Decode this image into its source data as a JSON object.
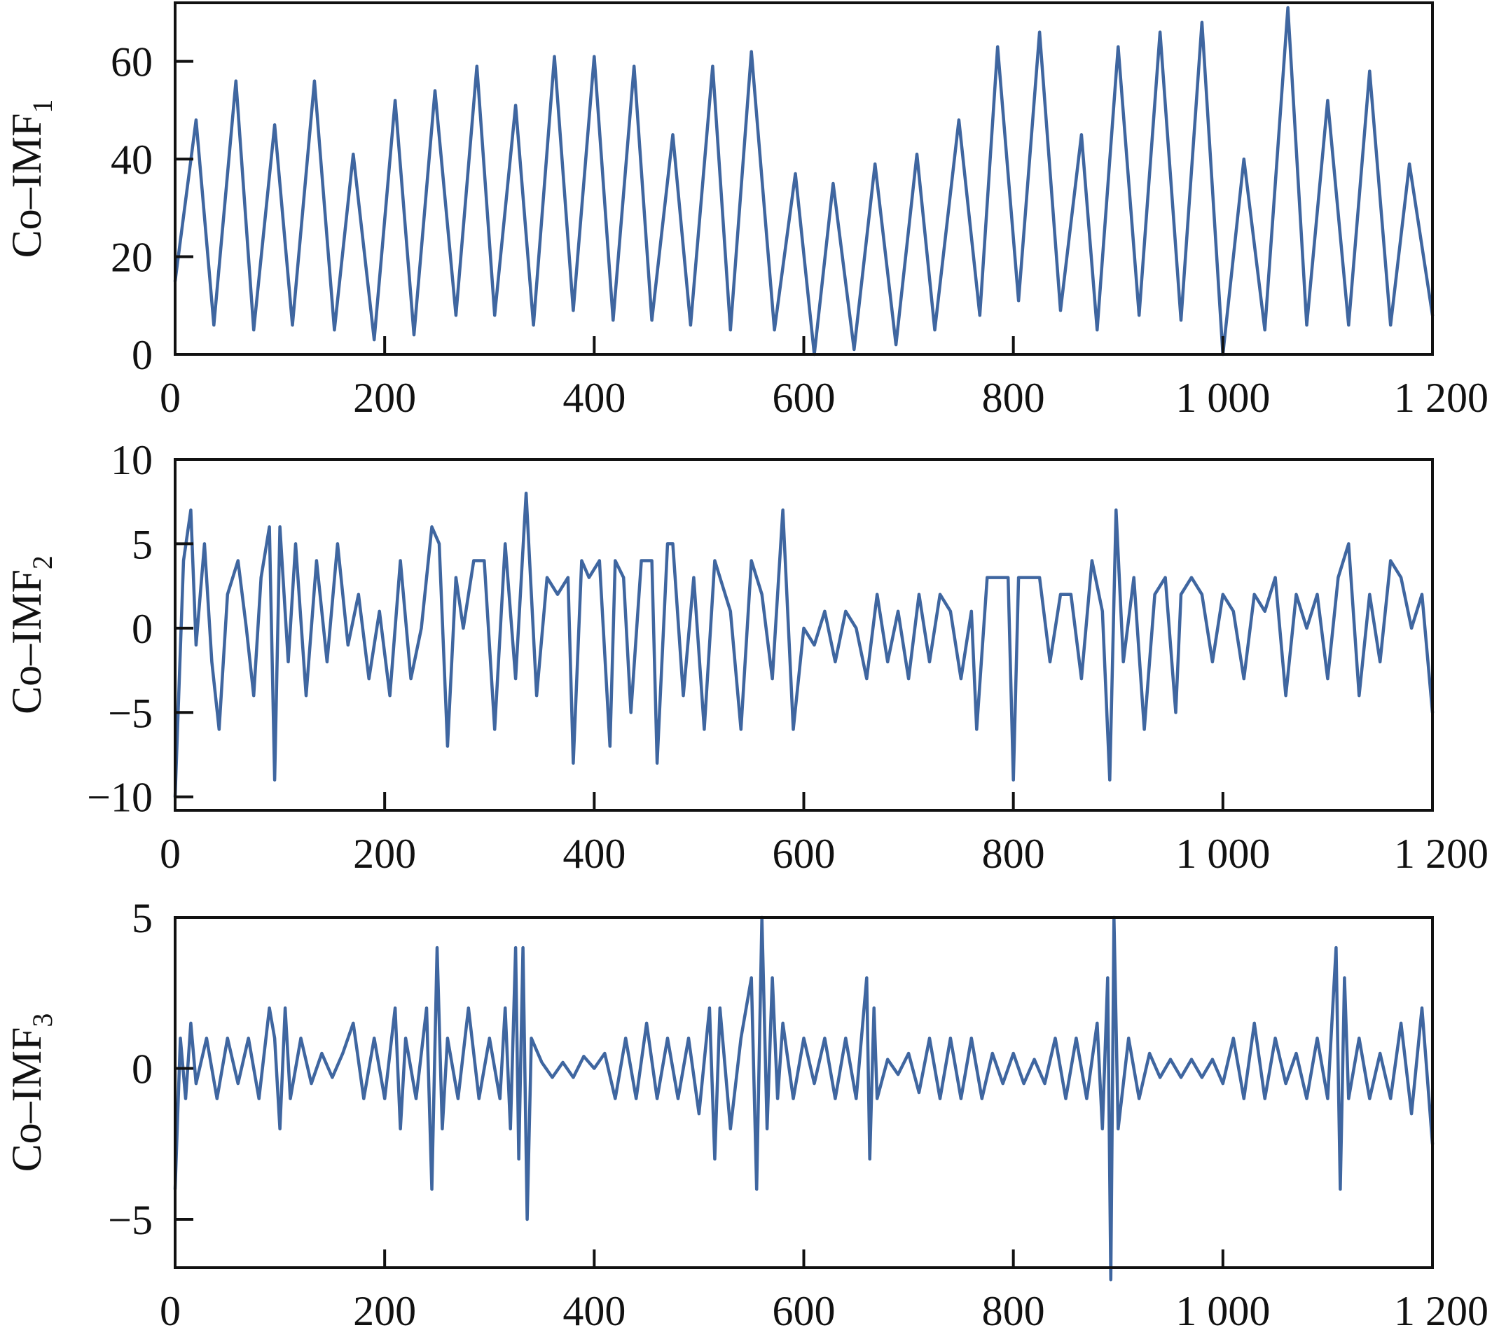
{
  "figure": {
    "line_color": "#3f66a0"
  },
  "chart_data": [
    {
      "type": "line",
      "ylabel": "Co–IMF",
      "ylabel_subscript": "1",
      "xlim": [
        0,
        1200
      ],
      "ylim": [
        0,
        72
      ],
      "x_ticks": [
        0,
        200,
        400,
        600,
        800,
        1000,
        1200
      ],
      "x_tick_labels": [
        "0",
        "200",
        "400",
        "600",
        "800",
        "1 000",
        "1 200"
      ],
      "y_ticks": [
        0,
        20,
        40,
        60
      ],
      "y_tick_labels": [
        "0",
        "20",
        "40",
        "60"
      ],
      "grid": false,
      "series": [
        {
          "x": [
            0,
            20,
            37,
            58,
            75,
            95,
            112,
            133,
            152,
            170,
            190,
            210,
            228,
            248,
            268,
            288,
            305,
            325,
            342,
            362,
            380,
            400,
            418,
            438,
            455,
            475,
            492,
            513,
            530,
            550,
            572,
            592,
            610,
            628,
            648,
            668,
            688,
            708,
            725,
            748,
            768,
            785,
            805,
            825,
            845,
            865,
            880,
            900,
            920,
            940,
            960,
            980,
            1000,
            1020,
            1040,
            1062,
            1080,
            1100,
            1120,
            1140,
            1160,
            1178,
            1200
          ],
          "y": [
            15,
            48,
            6,
            56,
            5,
            47,
            6,
            56,
            5,
            41,
            3,
            52,
            4,
            54,
            8,
            59,
            8,
            51,
            6,
            61,
            9,
            61,
            7,
            59,
            7,
            45,
            6,
            59,
            5,
            62,
            5,
            37,
            0,
            35,
            1,
            39,
            2,
            41,
            5,
            48,
            8,
            63,
            11,
            66,
            9,
            45,
            5,
            63,
            8,
            66,
            7,
            68,
            0,
            40,
            5,
            71,
            6,
            52,
            6,
            58,
            6,
            39,
            8
          ]
        }
      ]
    },
    {
      "type": "line",
      "ylabel": "Co–IMF",
      "ylabel_subscript": "2",
      "xlim": [
        0,
        1200
      ],
      "ylim": [
        -10.8,
        10
      ],
      "x_ticks": [
        0,
        200,
        400,
        600,
        800,
        1000,
        1200
      ],
      "x_tick_labels": [
        "0",
        "200",
        "400",
        "600",
        "800",
        "1 000",
        "1 200"
      ],
      "y_ticks": [
        -10,
        -5,
        0,
        5,
        10
      ],
      "y_tick_labels": [
        "−10",
        "−5",
        "0",
        "5",
        "10"
      ],
      "grid": false,
      "series": [
        {
          "x": [
            0,
            8,
            15,
            20,
            28,
            35,
            42,
            50,
            60,
            68,
            75,
            82,
            90,
            95,
            100,
            108,
            115,
            125,
            135,
            145,
            155,
            165,
            175,
            185,
            195,
            205,
            215,
            225,
            235,
            245,
            252,
            260,
            268,
            275,
            285,
            295,
            305,
            315,
            325,
            335,
            345,
            355,
            365,
            375,
            380,
            388,
            395,
            405,
            415,
            420,
            428,
            435,
            445,
            455,
            460,
            470,
            475,
            485,
            495,
            505,
            515,
            530,
            540,
            550,
            560,
            570,
            580,
            590,
            600,
            610,
            620,
            630,
            640,
            650,
            660,
            670,
            680,
            690,
            700,
            710,
            720,
            730,
            740,
            750,
            760,
            765,
            775,
            785,
            795,
            800,
            805,
            815,
            825,
            835,
            845,
            855,
            865,
            875,
            885,
            892,
            898,
            905,
            915,
            925,
            935,
            945,
            955,
            960,
            970,
            980,
            990,
            1000,
            1010,
            1020,
            1030,
            1040,
            1050,
            1060,
            1070,
            1080,
            1090,
            1100,
            1110,
            1120,
            1130,
            1140,
            1150,
            1160,
            1170,
            1180,
            1190,
            1200
          ],
          "y": [
            -10,
            4,
            7,
            -1,
            5,
            -2,
            -6,
            2,
            4,
            0,
            -4,
            3,
            6,
            -9,
            6,
            -2,
            5,
            -4,
            4,
            -2,
            5,
            -1,
            2,
            -3,
            1,
            -4,
            4,
            -3,
            0,
            6,
            5,
            -7,
            3,
            0,
            4,
            4,
            -6,
            5,
            -3,
            8,
            -4,
            3,
            2,
            3,
            -8,
            4,
            3,
            4,
            -7,
            4,
            3,
            -5,
            4,
            4,
            -8,
            5,
            5,
            -4,
            3,
            -6,
            4,
            1,
            -6,
            4,
            2,
            -3,
            7,
            -6,
            0,
            -1,
            1,
            -2,
            1,
            0,
            -3,
            2,
            -2,
            1,
            -3,
            2,
            -2,
            2,
            1,
            -3,
            1,
            -6,
            3,
            3,
            3,
            -9,
            3,
            3,
            3,
            -2,
            2,
            2,
            -3,
            4,
            1,
            -9,
            7,
            -2,
            3,
            -6,
            2,
            3,
            -5,
            2,
            3,
            2,
            -2,
            2,
            1,
            -3,
            2,
            1,
            3,
            -4,
            2,
            0,
            2,
            -3,
            3,
            5,
            -4,
            2,
            -2,
            4,
            3,
            0,
            2,
            -5
          ]
        }
      ]
    },
    {
      "type": "line",
      "ylabel": "Co–IMF",
      "ylabel_subscript": "3",
      "xlim": [
        0,
        1200
      ],
      "ylim": [
        -6.6,
        5
      ],
      "x_ticks": [
        0,
        200,
        400,
        600,
        800,
        1000,
        1200
      ],
      "x_tick_labels": [
        "0",
        "200",
        "400",
        "600",
        "800",
        "1 000",
        "1 200"
      ],
      "y_ticks": [
        -5,
        0,
        5
      ],
      "y_tick_labels": [
        "−5",
        "0",
        "5"
      ],
      "grid": false,
      "series": [
        {
          "x": [
            0,
            5,
            10,
            15,
            20,
            30,
            40,
            50,
            60,
            70,
            80,
            90,
            95,
            100,
            105,
            110,
            120,
            130,
            140,
            150,
            160,
            170,
            180,
            190,
            200,
            210,
            215,
            220,
            230,
            240,
            245,
            250,
            255,
            260,
            270,
            280,
            290,
            300,
            310,
            315,
            320,
            325,
            328,
            332,
            336,
            340,
            350,
            360,
            370,
            380,
            390,
            400,
            410,
            420,
            430,
            440,
            450,
            460,
            470,
            480,
            490,
            500,
            510,
            515,
            520,
            530,
            540,
            550,
            555,
            560,
            565,
            570,
            575,
            580,
            590,
            600,
            610,
            620,
            630,
            640,
            650,
            660,
            663,
            667,
            670,
            680,
            690,
            700,
            710,
            720,
            730,
            740,
            750,
            760,
            770,
            780,
            790,
            800,
            810,
            820,
            830,
            840,
            850,
            860,
            870,
            880,
            885,
            890,
            893,
            896,
            900,
            910,
            920,
            930,
            940,
            950,
            960,
            970,
            980,
            990,
            1000,
            1010,
            1020,
            1030,
            1040,
            1050,
            1060,
            1070,
            1080,
            1090,
            1100,
            1108,
            1112,
            1116,
            1120,
            1130,
            1140,
            1150,
            1160,
            1170,
            1180,
            1190,
            1200
          ],
          "y": [
            -4,
            1,
            -1,
            1.5,
            -0.5,
            1,
            -1,
            1,
            -0.5,
            1,
            -1,
            2,
            1,
            -2,
            2,
            -1,
            1,
            -0.5,
            0.5,
            -0.3,
            0.5,
            1.5,
            -1,
            1,
            -1,
            2,
            -2,
            1,
            -1,
            2,
            -4,
            4,
            -2,
            1,
            -1,
            2,
            -1,
            1,
            -1,
            2,
            -2,
            4,
            -3,
            4,
            -5,
            1,
            0.2,
            -0.3,
            0.2,
            -0.3,
            0.4,
            0,
            0.5,
            -1,
            1,
            -1,
            1.5,
            -1,
            1,
            -1,
            1,
            -1.5,
            2,
            -3,
            2,
            -2,
            1,
            3,
            -4,
            5,
            -2,
            3,
            -1,
            1.5,
            -1,
            1,
            -0.5,
            1,
            -1,
            1,
            -1,
            3,
            -3,
            2,
            -1,
            0.3,
            -0.2,
            0.5,
            -0.8,
            1,
            -1,
            1,
            -1,
            1,
            -1,
            0.5,
            -0.5,
            0.5,
            -0.5,
            0.3,
            -0.5,
            1,
            -1,
            1,
            -1,
            1.5,
            -2,
            3,
            -7,
            5,
            -2,
            1,
            -1,
            0.5,
            -0.3,
            0.3,
            -0.3,
            0.3,
            -0.3,
            0.3,
            -0.5,
            1,
            -1,
            1.5,
            -1,
            1,
            -0.5,
            0.5,
            -1,
            1,
            -1,
            4,
            -4,
            3,
            -1,
            1,
            -1,
            0.5,
            -1,
            1.5,
            -1.5,
            2,
            -2.5
          ]
        }
      ]
    }
  ]
}
